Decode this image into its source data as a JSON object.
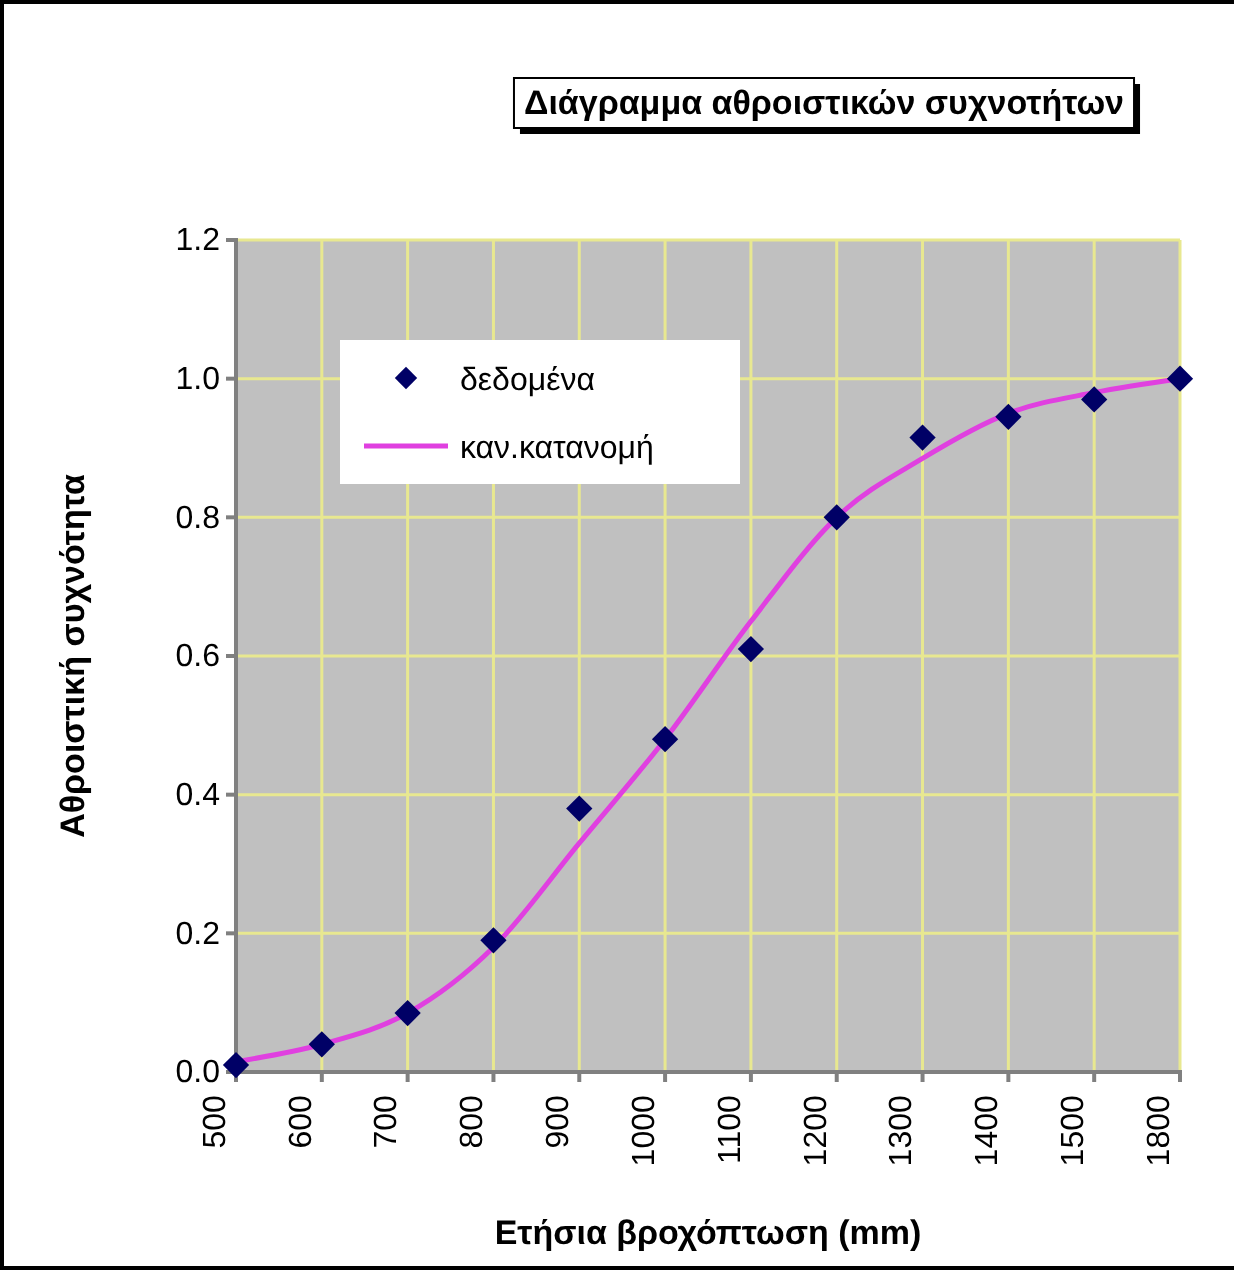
{
  "chart_data": {
    "type": "scatter",
    "title": "Διάγραμμα αθροιστικών συχνοτήτων",
    "xlabel": "Ετήσια βροχόπτωση (mm)",
    "ylabel": "Αθροιστική συχνότητα",
    "categories": [
      "500",
      "600",
      "700",
      "800",
      "900",
      "1000",
      "1100",
      "1200",
      "1300",
      "1400",
      "1500",
      "1800"
    ],
    "series": [
      {
        "name": "δεδομένα",
        "color": "#000066",
        "marker": "diamond",
        "values": [
          0.01,
          0.04,
          0.085,
          0.19,
          0.38,
          0.48,
          0.61,
          0.8,
          0.915,
          0.945,
          0.97,
          1.0
        ]
      },
      {
        "name": "καν.κατανομή",
        "type": "line",
        "color": "#e040e0",
        "marker": "none",
        "line_style": "solid",
        "values": [
          0.015,
          0.04,
          0.085,
          0.18,
          0.33,
          0.48,
          0.65,
          0.8,
          0.885,
          0.95,
          0.98,
          1.0
        ]
      }
    ],
    "ylim": [
      0,
      1.2
    ],
    "yticks": [
      {
        "value": 0,
        "label": "0.0"
      },
      {
        "value": 0.2,
        "label": "0.2"
      },
      {
        "value": 0.4,
        "label": "0.4"
      },
      {
        "value": 0.6,
        "label": "0.6"
      },
      {
        "value": 0.8,
        "label": "0.8"
      },
      {
        "value": 1,
        "label": "1.0"
      },
      {
        "value": 1.2,
        "label": "1.2"
      }
    ],
    "grid": true,
    "legend": "top left"
  }
}
